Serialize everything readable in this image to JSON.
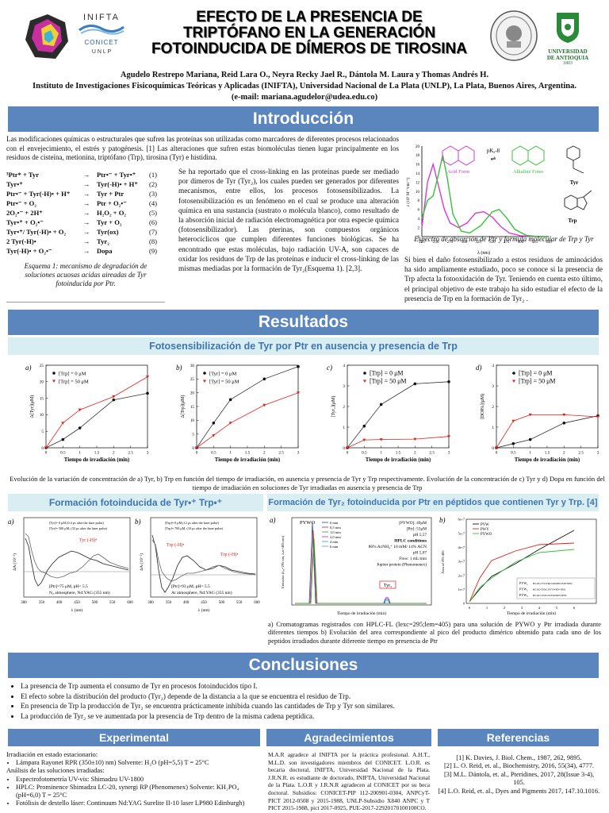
{
  "header": {
    "title_lines": [
      "EFECTO DE LA PRESENCIA DE",
      "TRIPTÓFANO EN LA GENERACIÓN",
      "FOTOINDUCIDA DE DÍMEROS DE TIROSINA"
    ],
    "inifta_logo_text": "INIFTA",
    "conicet_text": "CONICET",
    "unlp_text": "U N L P",
    "udea_text_1": "UNIVERSIDAD",
    "udea_text_2": "DE ANTIOQUIA",
    "udea_year": "1803",
    "authors": "Agudelo Restrepo Mariana, Reid Lara O., Neyra Recky Jael R., Dántola M. Laura y Thomas Andrés H.",
    "institute": "Instituto de Investigaciones Fisicoquímicas Teóricas y Aplicadas (INIFTA),  Universidad Nacional de La Plata (UNLP), La Plata, Buenos Aires, Argentina.",
    "email": "(e-mail: mariana.agudelor@udea.edu.co)"
  },
  "intro": {
    "title": "Introducción",
    "para1": "Las modificaciones químicas o estructurales que sufren las proteínas son utilizadas como marcadores de diferentes procesos relacionados con el envejecimiento, el estrés y patogénesis. [1] Las alteraciones que sufren estas biomoléculas tienen lugar principalmente en los residuos de cisteína, metionina, triptófano (Trp), tirosina (Tyr) e histidina.",
    "scheme": [
      {
        "l": "³Ptr* + Tyr",
        "a": "→",
        "r": "Ptr•⁻ + Tyr•⁺",
        "n": "(1)"
      },
      {
        "l": "Tyr•⁺",
        "a": "→",
        "r": "Tyr(-H)• + H⁺",
        "n": "(2)"
      },
      {
        "l": "Ptr•⁻ + Tyr(-H)• + H⁺",
        "a": "→",
        "r": "Tyr + Ptr",
        "n": "(3)"
      },
      {
        "l": "Ptr•⁻ + O₂",
        "a": "→",
        "r": "Ptr + O₂•⁻",
        "n": "(4)"
      },
      {
        "l": "2O₂•⁻ + 2H⁺",
        "a": "→",
        "r": "H₂O₂ + O₂",
        "n": "(5)"
      },
      {
        "l": "Tyr•⁺ + O₂•⁻",
        "a": "→",
        "r": "Tyr + O₂",
        "n": "(6)"
      },
      {
        "l": "Tyr•⁺/ Tyr(-H)• + O₂",
        "a": "→",
        "r": "Tyr(ox)",
        "n": "(7)"
      },
      {
        "l": "2 Tyr(-H)•",
        "a": "→",
        "r": "Tyr₂",
        "n": "(8)"
      },
      {
        "l": "Tyr(-H)• + O₂•⁻",
        "a": "→",
        "r": "Dopa",
        "n": "(9)"
      }
    ],
    "scheme_arrow_note": "H₂O",
    "scheme_caption": "Esquema 1: mecanismo de degradación de soluciones acuosas acidas aireadas de Tyr fotoinducida por Ptr.",
    "para2": "Se ha reportado que el cross-linking en las proteínas puede ser mediado por dímeros de Tyr (Tyr₂), los cuales pueden ser generados por diferentes mecanismos, entre ellos, los procesos fotosensibilizados. La fotosensibilización es un fenómeno en el cual se produce una alteración química en una sustancia (sustrato o molécula blanco), como resultado de la absorción inicial de radiación electromagnética por otra especie química (fotosensibilizador). Las pterinas, son compuestos orgánicos heterocíclicos que cumplen diferentes funciones biológicas. Se ha encontrado que estas moléculas, bajo radiación UV-A, son capaces de oxidar los residuos de Trp de las proteínas e inducir el cross-linking de las mismas mediadas por la formación de Tyr₂(Esquema 1). [2,3].",
    "spectrum_caption": "Espectro de absorción de Ptr y formula molecular de Trp y Tyr",
    "para3": "Si bien el daño fotosensibilizado a estos residuos de aminoácidos ha sido ampliamente estudiado, poco se conoce si la presencia de Trp afecta la fotooxidación de Tyr. Teniendo en cuenta esto último, el principal objetivo de este trabajo ha sido estudiar el efecto de la presencia de Trp en la formación de Tyr₂ .",
    "spectrum": {
      "pka_label": "pKₐ-8",
      "acid_label": "Acid Form",
      "alk_label": "Alkaline Form",
      "tyr_label": "Tyr",
      "trp_label": "Trp",
      "ylabel": "ε (10³ M⁻¹cm⁻¹)",
      "xlabel": "λ (nm)",
      "xticks": [
        "225",
        "250",
        "275",
        "300",
        "325",
        "350",
        "375",
        "400",
        "425",
        "450"
      ],
      "yticks": [
        "0",
        "2",
        "4",
        "6",
        "8",
        "10",
        "12",
        "14",
        "16",
        "18",
        "20"
      ],
      "acid_color": "#d63ad6",
      "alk_color": "#37c23a"
    }
  },
  "results": {
    "title": "Resultados",
    "sub1": "Fotosensibilización de Tyr por Ptr en ausencia y presencia de Trp",
    "legend_a": "[Trp] = 0  μM",
    "legend_b": "[Trp] = 50  μM",
    "xlabel": "Tiempo de irradiación (min)",
    "caption1": "Evolución de la variación de concentración de a) Tyr, b) Trp  en función del tiempo de irradiación, en ausencia y presencia de Tyr y Trp respectivamente. Evolución de la concentración de c) Tyr y d) Dopa en función del tiempo de irradiación en soluciones de Tyr irradiadas en ausencia y presencia de Trp",
    "sub2": "Formación fotoinducida de Tyr•⁺ Trp•⁺",
    "sub3": "Formación de Tyr₂ fotoinducida por Ptr en péptidos que contienen Tyr y Trp. [4]",
    "caption2": "a) Cromatogramas registrados con HPLC-FL (lexc=295;lem=405) para una solución de PYWO y Ptr irradiada durante diferentes tiempos b) Evolución del area correspondiente al pico del producto dimérico obtenido para cada uno de los peptidos irradiados durante diferente tiempo en presencia de Ptr"
  },
  "chart_data": [
    {
      "type": "line",
      "panel": "a)",
      "ylabel": "Δ[Tyr](μM)",
      "x": [
        0,
        0.5,
        1,
        2,
        3
      ],
      "series": [
        {
          "name": "[Trp] = 0  μM",
          "values": [
            0,
            2.5,
            6,
            14.5,
            16.5
          ]
        },
        {
          "name": "[Trp] = 50  μM",
          "values": [
            0,
            7.5,
            11.5,
            15.5,
            21.5
          ]
        }
      ],
      "xlim": [
        0,
        3
      ],
      "ylim": [
        0,
        25
      ],
      "xticks": [
        0,
        0.5,
        1,
        1.5,
        2,
        2.5,
        3
      ],
      "yticks": [
        0,
        5,
        10,
        15,
        20,
        25
      ]
    },
    {
      "type": "line",
      "panel": "b)",
      "ylabel": "Δ[Trp](μM)",
      "x": [
        0,
        0.5,
        1,
        2,
        3
      ],
      "series": [
        {
          "name": "[Tyr] = 0  μM",
          "values": [
            0,
            9,
            17.5,
            25,
            29.5
          ]
        },
        {
          "name": "[Tyr] = 50  μM",
          "values": [
            0,
            4.5,
            9,
            15.5,
            20
          ]
        }
      ],
      "xlim": [
        0,
        3
      ],
      "ylim": [
        0,
        30
      ],
      "xticks": [
        0,
        0.5,
        1,
        1.5,
        2,
        2.5,
        3
      ],
      "yticks": [
        0,
        5,
        10,
        15,
        20,
        25,
        30
      ]
    },
    {
      "type": "line",
      "panel": "c)",
      "ylabel": "[Tyr₂](μM)",
      "x": [
        0,
        0.5,
        1,
        2,
        3
      ],
      "series": [
        {
          "name": "[Trp] = 0  μM",
          "values": [
            0,
            1.05,
            2.1,
            3.1,
            3.2
          ]
        },
        {
          "name": "[Trp] = 50  μM",
          "values": [
            0,
            0.38,
            0.4,
            0.42,
            0.55
          ]
        }
      ],
      "xlim": [
        0,
        3
      ],
      "ylim": [
        0,
        4
      ],
      "xticks": [
        0,
        0.5,
        1,
        1.5,
        2,
        2.5,
        3
      ],
      "yticks": [
        0,
        1,
        2,
        3,
        4
      ]
    },
    {
      "type": "line",
      "panel": "d)",
      "ylabel": "[DOPA](μM)",
      "x": [
        0,
        0.5,
        1,
        2,
        3
      ],
      "series": [
        {
          "name": "[Trp] = 0  μM",
          "values": [
            0,
            0.2,
            0.4,
            1.2,
            1.55
          ]
        },
        {
          "name": "[Trp] = 50  μM",
          "values": [
            0,
            1.3,
            1.6,
            1.6,
            1.5
          ]
        }
      ],
      "xlim": [
        0,
        3
      ],
      "ylim": [
        0,
        4
      ],
      "xticks": [
        0,
        0.5,
        1,
        1.5,
        2,
        2.5,
        3
      ],
      "yticks": [
        0,
        1,
        2,
        3,
        4
      ]
    }
  ],
  "transient": {
    "a_label": "a)",
    "b_label": "b)",
    "a_leg1": "[Tyr]= 0 μM (0.4 μs after the laser pulse)",
    "a_leg2": "[Tyr]= 500 μM, (33 μs after the laser pulse)",
    "a_peak": "Tyr (-H)•",
    "a_cond1": "[Ptr]=75 μM, pH= 5.5",
    "a_cond2": "N₂ atmosphere, Nd:YAG (355 nm)",
    "b_leg1": "[Trp]= 0 μM (12 μs after the laser pulse)",
    "b_leg2": "[Trp]= 700 μM, (10 μs after the laser pulse)",
    "b_peak1": "Trp (-H)•",
    "b_peak2": "Trp (-H)•",
    "b_cond1": "[Ptr]=93 μM, pH= 5.5",
    "b_cond2": "Ar atmosphere, Nd:YAG (355 nm)",
    "a_ylabel": "ΔA (10⁻²)",
    "b_ylabel": "ΔA (10⁻²)",
    "xlabel": "λ (nm)",
    "xticks": [
      "300",
      "350",
      "400",
      "450",
      "500",
      "550",
      "600"
    ]
  },
  "hplc": {
    "label": "a)",
    "title": "PYWO",
    "conds": [
      "[PYWO]: 49μM",
      "[Ptr]: 53μM",
      "pH  5,57",
      "HPLC conditions",
      "86% AcNH₄⁺ 10 mM/ 14% ACN",
      "pH 5,07",
      "Flow: 1 mL/min",
      "Jupiter protein (Phenomenex)"
    ],
    "peak_label": "Tyr₂",
    "legend": [
      "0 min",
      "0,5 min",
      "1,0 min",
      "2,0 min",
      "4 min",
      "6 min"
    ],
    "ylabel": "Emission (λₑₓ=295 nm, λₑₘ=405 nm)",
    "xlabel": "Tiempo de irradiación (min)",
    "b_label": "b)",
    "b_legend": [
      "PYW",
      "PWY",
      "PYWO"
    ],
    "b_table": [
      {
        "k": "PYW₁",
        "v": "HCOO-YYWRLNKNPKSSPYNH2"
      },
      {
        "k": "PYW₂",
        "v": "HCOO-SSSGSYYWRN-NH2"
      },
      {
        "k": "PYW₃",
        "v": "HCOO-SSSGSSYAWRN-NH2"
      }
    ],
    "b_ylabel": "Área of 295 405",
    "b_xlabel": "Tiempo de irradiación (min)",
    "b_yticks": [
      "0",
      "1e+7",
      "2e+7",
      "3e+7",
      "4e+7",
      "5e+7",
      "6e+7"
    ],
    "b_xticks": [
      "0",
      "1",
      "2",
      "3",
      "4",
      "5",
      "6"
    ]
  },
  "conclusions": {
    "title": "Conclusiones",
    "items": [
      "La presencia de Trp aumenta el consumo de Tyr en procesos fotoinducidos tipo I.",
      "El efecto sobre la distribución del producto (Tyr₂) depende de la distancia a la que se encuentra el residuo de Trp.",
      "En presencia de Trp la producción de Tyr₂  se encuentra prácticamente inhibida cuando las cantidades de Trp y Tyr son similares.",
      "La producción de Tyr₂  se ve aumentada por la presencia de Trp dentro de la misma cadena peptídica."
    ]
  },
  "experimental": {
    "title": "Experimental",
    "l1": "Irradiación en estado estacionario:",
    "b1": "Lámpara Rayonet RPR (350±10) nm) Solvente:   H₂O (pH=5,5) T = 25°C",
    "l2": "Análisis de las soluciones irradiadas:",
    "b2": "Espectrofotometría UV-vis: Shimadzu UV-1800",
    "b3": "HPLC: Prominence Shimadzu LC-20, synergi RP (Phenomenex) Solvente: KH₂PO₄ (pH=6,0) T = 25°C",
    "b4": "Fotólisis de destello láser: Continuum Nd:YAG Surelite II-10 laser LP980 Edinburgh)"
  },
  "agradecimientos": {
    "title": "Agradecimientos",
    "text": "M.A.R agradece al INIFTA por la práctica profesional. A.H.T., M.L.D. son investigadores miembros del CONICET. L.O.R. es becaria doctoral, INIFTA, Universidad Nacional de la Plata. J.R.N.R. es estudiante de doctorado, INIFTA, Universidad Nacional de la Plata. L.O.R y J.R.N.R agradecen al CONICET por su beca doctoral. Subsidios: CONICET-PIP 112-200901-0304, ANPCyT-PICT 2012-0508 y 2015-1988, UNLP-Subsidio X840 ANPC y T PICT 2015-1988, pict 2017-0925, PUE-2017-22920170100100CO."
  },
  "referencias": {
    "title": "Referencias",
    "items": [
      "[1] K. Davies, J. Biol. Chem., 1987, 262, 9895.",
      "[2] L. O. Reid, et. al., Biochemistry, 2016, 55(34), 4777.",
      "[3] M.L. Dántola, et. al., Pteridines, 2017, 28(Issue 3-4), 105.",
      "[4] L.O. Reid, et. al., Dyes and Pigments 2017, 147.10.1016."
    ]
  },
  "colors": {
    "band": "#5b86bd",
    "subband": "#d9eef3",
    "black_series": "#111111",
    "red_series": "#e0201a"
  }
}
